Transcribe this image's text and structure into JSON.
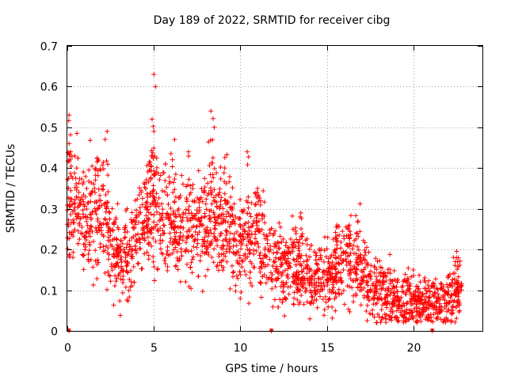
{
  "chart_data": {
    "type": "scatter",
    "title": "Day 189 of 2022, SRMTID for receiver cibg",
    "xlabel": "GPS time / hours",
    "ylabel": "SRMTID / TECUs",
    "xlim": [
      0,
      24
    ],
    "ylim": [
      0,
      0.7
    ],
    "xticks": [
      0,
      5,
      10,
      15,
      20
    ],
    "yticks": [
      0,
      0.1,
      0.2,
      0.3,
      0.4,
      0.5,
      0.6,
      0.7
    ],
    "grid": true,
    "marker": "+",
    "color": "#ff0000",
    "series": [
      {
        "name": "SRMTID",
        "trend": [
          [
            0.0,
            0.3
          ],
          [
            0.2,
            0.34
          ],
          [
            0.5,
            0.31
          ],
          [
            0.8,
            0.29
          ],
          [
            1.0,
            0.27
          ],
          [
            1.3,
            0.27
          ],
          [
            1.6,
            0.29
          ],
          [
            1.9,
            0.3
          ],
          [
            2.2,
            0.28
          ],
          [
            2.5,
            0.2
          ],
          [
            3.0,
            0.17
          ],
          [
            3.5,
            0.18
          ],
          [
            4.0,
            0.22
          ],
          [
            4.5,
            0.28
          ],
          [
            5.0,
            0.31
          ],
          [
            5.5,
            0.28
          ],
          [
            6.0,
            0.27
          ],
          [
            6.5,
            0.25
          ],
          [
            7.0,
            0.24
          ],
          [
            7.5,
            0.25
          ],
          [
            8.0,
            0.26
          ],
          [
            8.5,
            0.28
          ],
          [
            9.0,
            0.26
          ],
          [
            9.5,
            0.24
          ],
          [
            10.0,
            0.22
          ],
          [
            10.5,
            0.23
          ],
          [
            11.0,
            0.24
          ],
          [
            11.5,
            0.2
          ],
          [
            12.0,
            0.17
          ],
          [
            12.5,
            0.16
          ],
          [
            13.0,
            0.17
          ],
          [
            13.5,
            0.15
          ],
          [
            14.0,
            0.14
          ],
          [
            14.5,
            0.13
          ],
          [
            15.0,
            0.14
          ],
          [
            15.5,
            0.16
          ],
          [
            16.0,
            0.17
          ],
          [
            16.5,
            0.17
          ],
          [
            17.0,
            0.16
          ],
          [
            17.5,
            0.11
          ],
          [
            18.0,
            0.09
          ],
          [
            18.5,
            0.09
          ],
          [
            19.0,
            0.08
          ],
          [
            19.5,
            0.075
          ],
          [
            20.0,
            0.07
          ],
          [
            20.5,
            0.065
          ],
          [
            21.0,
            0.065
          ],
          [
            21.5,
            0.07
          ],
          [
            22.0,
            0.08
          ],
          [
            22.5,
            0.1
          ],
          [
            22.8,
            0.11
          ]
        ],
        "peaks": [
          [
            0.1,
            0.53
          ],
          [
            0.1,
            0.46
          ],
          [
            1.8,
            0.42
          ],
          [
            2.3,
            0.49
          ],
          [
            5.0,
            0.63
          ],
          [
            5.1,
            0.6
          ],
          [
            4.9,
            0.52
          ],
          [
            6.2,
            0.47
          ],
          [
            7.0,
            0.44
          ],
          [
            8.3,
            0.54
          ],
          [
            8.5,
            0.5
          ],
          [
            9.1,
            0.4
          ],
          [
            10.4,
            0.44
          ],
          [
            11.0,
            0.35
          ],
          [
            13.5,
            0.29
          ],
          [
            15.6,
            0.26
          ],
          [
            16.3,
            0.26
          ],
          [
            16.8,
            0.27
          ],
          [
            20.0,
            0.15
          ],
          [
            22.5,
            0.18
          ]
        ],
        "outliers_at_zero": [
          0.1,
          11.8,
          21.1
        ]
      }
    ]
  }
}
